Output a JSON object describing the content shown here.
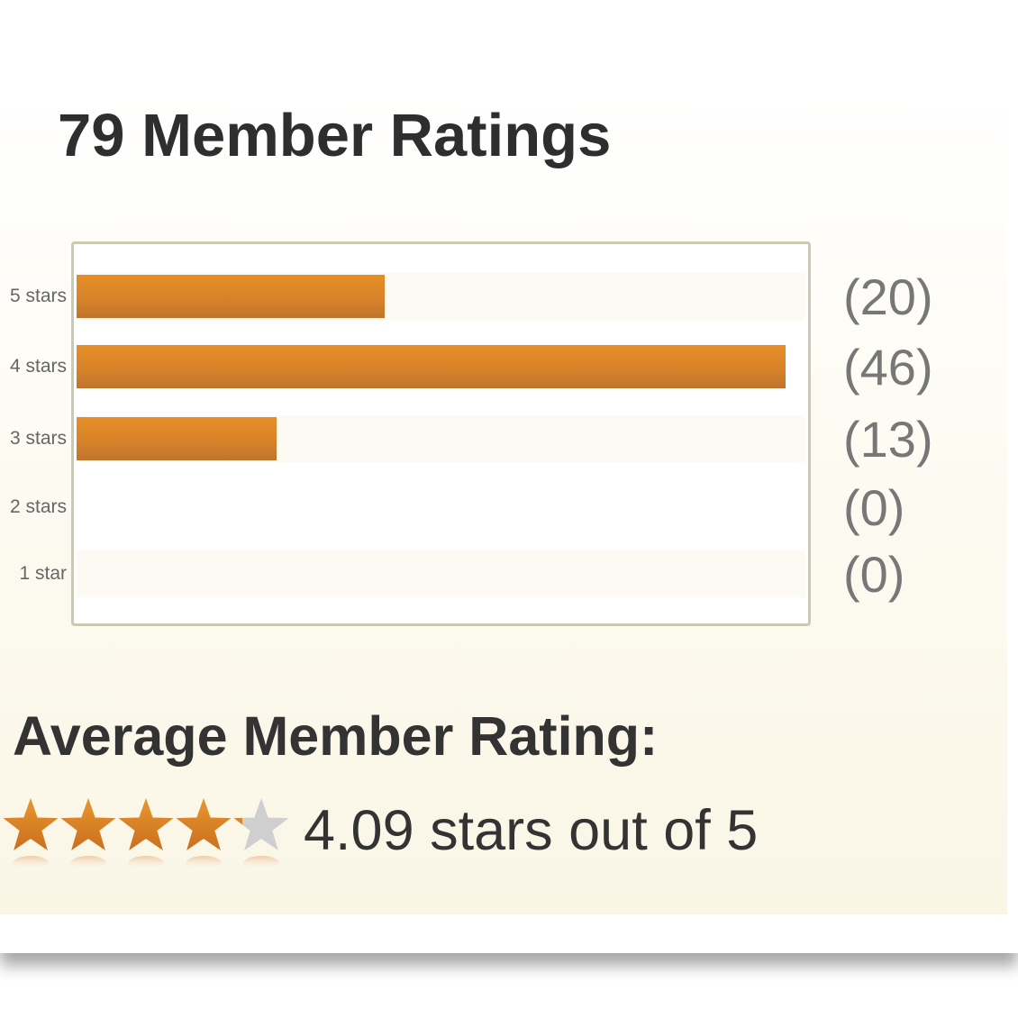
{
  "title": "79 Member Ratings",
  "ratings": [
    {
      "label": "5 stars",
      "count_text": "(20)",
      "count": 20
    },
    {
      "label": "4 stars",
      "count_text": "(46)",
      "count": 46
    },
    {
      "label": "3 stars",
      "count_text": "(13)",
      "count": 13
    },
    {
      "label": "2 stars",
      "count_text": "(0)",
      "count": 0
    },
    {
      "label": "1 star",
      "count_text": "(0)",
      "count": 0
    }
  ],
  "average": {
    "heading": "Average Member Rating:",
    "value": 4.09,
    "max": 5,
    "text": "4.09 stars out of 5"
  },
  "colors": {
    "bar": "#e08a28",
    "star_filled": "#e3861f",
    "star_empty": "#cfcfcf",
    "box_border": "#c9cbae"
  }
}
